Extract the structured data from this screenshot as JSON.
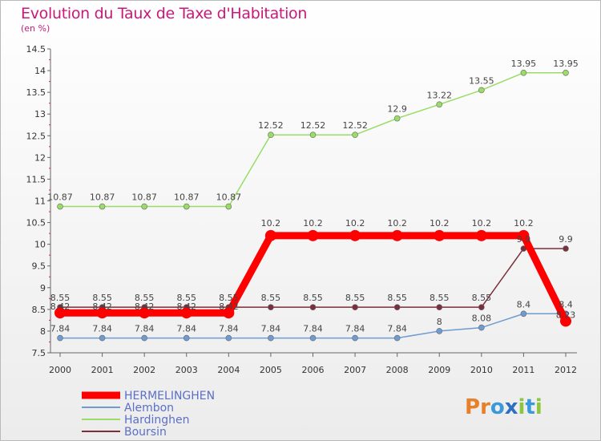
{
  "chart_data": {
    "type": "line",
    "title": "Evolution du Taux de Taxe d'Habitation",
    "subtitle": "(en %)",
    "x": [
      "2000",
      "2001",
      "2002",
      "2003",
      "2004",
      "2005",
      "2006",
      "2007",
      "2008",
      "2009",
      "2010",
      "2011",
      "2012"
    ],
    "ylim": [
      7.5,
      14.5
    ],
    "yticks": [
      "7.5",
      "8",
      "8.5",
      "9",
      "9.5",
      "10",
      "10.5",
      "11",
      "11.5",
      "12",
      "12.5",
      "13",
      "13.5",
      "14",
      "14.5"
    ],
    "grid": false,
    "legend_position": "bottom-left",
    "series": [
      {
        "name": "HERMELINGHEN",
        "color": "#ff0000",
        "values": [
          8.42,
          8.42,
          8.42,
          8.42,
          8.42,
          10.2,
          10.2,
          10.2,
          10.2,
          10.2,
          10.2,
          10.2,
          8.23
        ]
      },
      {
        "name": "Alembon",
        "color": "#6e9bd0",
        "values": [
          7.84,
          7.84,
          7.84,
          7.84,
          7.84,
          7.84,
          7.84,
          7.84,
          7.84,
          8,
          8.08,
          8.4,
          8.4
        ]
      },
      {
        "name": "Hardinghen",
        "color": "#99dd66",
        "values": [
          10.87,
          10.87,
          10.87,
          10.87,
          10.87,
          12.52,
          12.52,
          12.52,
          12.9,
          13.22,
          13.55,
          13.95,
          13.95
        ]
      },
      {
        "name": "Boursin",
        "color": "#7a2f3a",
        "values": [
          8.55,
          8.55,
          8.55,
          8.55,
          8.55,
          8.55,
          8.55,
          8.55,
          8.55,
          8.55,
          8.55,
          9.9,
          9.9
        ]
      }
    ]
  },
  "labels": {
    "HERMELINGHEN": [
      "8.42",
      "8.42",
      "8.42",
      "8.42",
      "8.42",
      "10.2",
      "10.2",
      "10.2",
      "10.2",
      "10.2",
      "10.2",
      "10.2",
      "8.23"
    ],
    "Alembon": [
      "7.84",
      "7.84",
      "7.84",
      "7.84",
      "7.84",
      "7.84",
      "7.84",
      "7.84",
      "7.84",
      "8",
      "8.08",
      "8.4",
      "8.4"
    ],
    "Hardinghen": [
      "10.87",
      "10.87",
      "10.87",
      "10.87",
      "10.87",
      "12.52",
      "12.52",
      "12.52",
      "12.9",
      "13.22",
      "13.55",
      "13.95",
      "13.95"
    ],
    "Boursin": [
      "8.55",
      "8.55",
      "8.55",
      "8.55",
      "8.55",
      "8.55",
      "8.55",
      "8.55",
      "8.55",
      "8.55",
      "8.55",
      "9.9",
      "9.9"
    ]
  },
  "logo": {
    "text": "Proxiti",
    "colors": [
      "#e8802a",
      "#e8802a",
      "#3a9ad9",
      "#2f6fc0",
      "#8cc63f",
      "#3a9ad9",
      "#8cc63f"
    ]
  }
}
